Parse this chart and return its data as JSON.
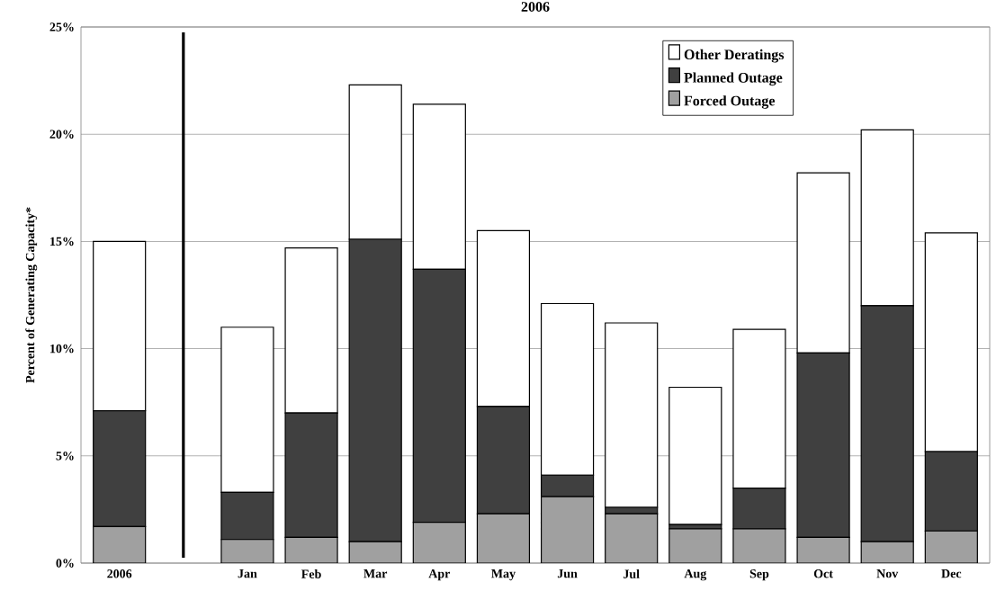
{
  "chart_data": {
    "type": "bar",
    "title": "2006",
    "ylabel": "Percent of Generating Capacity*",
    "stacked": true,
    "categories": [
      "2006",
      null,
      "Jan",
      "Feb",
      "Mar",
      "Apr",
      "May",
      "Jun",
      "Jul",
      "Aug",
      "Sep",
      "Oct",
      "Nov",
      "Dec"
    ],
    "series": [
      {
        "name": "Forced Outage",
        "color": "#a0a0a0",
        "values": [
          1.7,
          null,
          1.1,
          1.2,
          1.0,
          1.9,
          2.3,
          3.1,
          2.3,
          1.6,
          1.6,
          1.2,
          1.0,
          1.5
        ]
      },
      {
        "name": "Planned Outage",
        "color": "#404040",
        "values": [
          5.4,
          null,
          2.2,
          5.8,
          14.1,
          11.8,
          5.0,
          1.0,
          0.3,
          0.2,
          1.9,
          8.6,
          11.0,
          3.7
        ]
      },
      {
        "name": "Other Deratings",
        "color": "#ffffff",
        "values": [
          7.9,
          null,
          7.7,
          7.7,
          7.2,
          7.7,
          8.2,
          8.0,
          8.6,
          6.4,
          7.4,
          8.4,
          8.2,
          10.2
        ]
      }
    ],
    "ylim": [
      0,
      25
    ],
    "yticks": [
      {
        "value": 0,
        "label": "0%"
      },
      {
        "value": 5,
        "label": "5%"
      },
      {
        "value": 10,
        "label": "10%"
      },
      {
        "value": 15,
        "label": "15%"
      },
      {
        "value": 20,
        "label": "20%"
      },
      {
        "value": 25,
        "label": "25%"
      }
    ],
    "grid": "y",
    "legend": "top right"
  }
}
